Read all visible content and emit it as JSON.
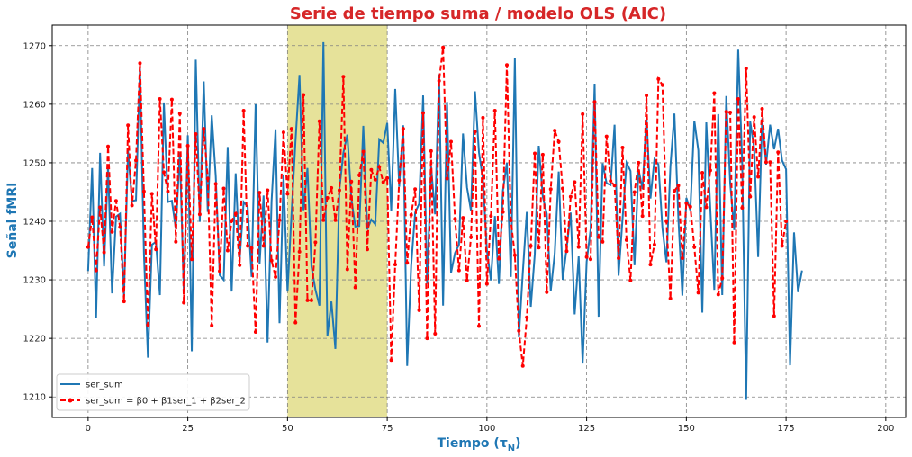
{
  "chart_data": {
    "type": "line",
    "title": "Serie de tiempo suma / modelo OLS (AIC)",
    "xlabel": "Tiempo (τ",
    "xlabel_sub": "N",
    "ylabel": "Señal fMRI",
    "xlim": [
      -9,
      205
    ],
    "ylim": [
      1206.5,
      1273.5
    ],
    "xticks": [
      0,
      25,
      50,
      75,
      100,
      125,
      150,
      175,
      200
    ],
    "yticks": [
      1210,
      1220,
      1230,
      1240,
      1250,
      1260,
      1270
    ],
    "grid": true,
    "highlight_region": {
      "x0": 50,
      "x1": 75,
      "color": "#e6e29a"
    },
    "legend_position": "lower-left",
    "series": [
      {
        "name": "ser_sum",
        "color": "#1f77b4",
        "style": "solid",
        "values": [
          1231.5,
          1249.1,
          1223.5,
          1251.7,
          1232.3,
          1249.4,
          1227.7,
          1240.8,
          1241.3,
          1227.2,
          1252.1,
          1243.5,
          1243.6,
          1266.3,
          1234.4,
          1216.7,
          1236.0,
          1236.5,
          1227.4,
          1260.3,
          1243.3,
          1243.5,
          1238.7,
          1251.8,
          1227.9,
          1254.7,
          1217.8,
          1267.6,
          1239.9,
          1263.9,
          1241.6,
          1258.1,
          1247.7,
          1230.8,
          1230.0,
          1252.7,
          1228.0,
          1248.2,
          1233.5,
          1243.3,
          1242.5,
          1230.5,
          1260.0,
          1232.7,
          1244.4,
          1219.3,
          1243.4,
          1255.7,
          1222.6,
          1248.0,
          1228.0,
          1241.2,
          1253.7,
          1265.0,
          1241.9,
          1249.1,
          1232.3,
          1228.3,
          1225.6,
          1270.6,
          1220.4,
          1226.3,
          1218.2,
          1245.4,
          1251.7,
          1254.8,
          1243.9,
          1239.1,
          1239.2,
          1256.3,
          1238.6,
          1240.3,
          1239.5,
          1254.0,
          1253.4,
          1256.8,
          1241.8,
          1262.6,
          1245.9,
          1256.4,
          1215.3,
          1232.4,
          1241.5,
          1243.0,
          1261.5,
          1229.3,
          1249.4,
          1241.2,
          1265.1,
          1225.6,
          1260.4,
          1231.2,
          1234.6,
          1236.0,
          1255.0,
          1245.8,
          1241.8,
          1262.2,
          1251.8,
          1247.1,
          1235.0,
          1229.9,
          1240.9,
          1229.3,
          1245.2,
          1250.0,
          1230.5,
          1267.9,
          1220.2,
          1231.3,
          1241.6,
          1225.4,
          1234.4,
          1252.9,
          1244.2,
          1241.3,
          1228.1,
          1234.5,
          1248.5,
          1230.0,
          1235.5,
          1241.5,
          1224.1,
          1234.0,
          1215.7,
          1233.1,
          1238.7,
          1263.5,
          1223.7,
          1249.9,
          1246.5,
          1246.2,
          1256.5,
          1230.7,
          1240.4,
          1250.0,
          1248.6,
          1232.5,
          1248.9,
          1245.5,
          1257.7,
          1243.9,
          1250.6,
          1249.7,
          1238.8,
          1233.0,
          1249.4,
          1258.4,
          1240.4,
          1227.3,
          1244.0,
          1241.9,
          1257.2,
          1252.1,
          1224.4,
          1256.9,
          1242.2,
          1228.3,
          1258.3,
          1227.4,
          1261.4,
          1246.4,
          1238.5,
          1269.3,
          1250.0,
          1209.5,
          1257.1,
          1252.5,
          1233.9,
          1257.6,
          1249.7,
          1256.5,
          1252.3,
          1255.8,
          1250.4,
          1248.9,
          1215.4,
          1238.1,
          1227.9,
          1231.6
        ]
      },
      {
        "name": "ser_sum = β0 + β1ser_1 + β2ser_2",
        "color": "#ff0000",
        "style": "dashed",
        "values": [
          1235.6,
          1240.7,
          1231.6,
          1242.4,
          1234.7,
          1252.8,
          1238.2,
          1243.5,
          1239.0,
          1226.3,
          1256.4,
          1242.7,
          1250.4,
          1267.0,
          1245.1,
          1222.3,
          1244.7,
          1235.2,
          1260.9,
          1248.4,
          1245.1,
          1260.8,
          1236.5,
          1258.4,
          1226.1,
          1252.9,
          1233.5,
          1254.9,
          1241.2,
          1255.8,
          1247.3,
          1222.2,
          1246.4,
          1231.5,
          1245.6,
          1235.0,
          1240.1,
          1241.3,
          1232.5,
          1258.9,
          1235.8,
          1235.4,
          1221.1,
          1244.9,
          1235.8,
          1245.3,
          1233.3,
          1230.5,
          1240.2,
          1255.2,
          1244.7,
          1255.8,
          1222.7,
          1234.8,
          1261.6,
          1226.5,
          1226.5,
          1236.4,
          1257.1,
          1240.2,
          1244.0,
          1245.7,
          1240.2,
          1245.3,
          1264.7,
          1231.8,
          1246.8,
          1228.7,
          1247.9,
          1251.9,
          1235.2,
          1248.8,
          1247.1,
          1249.3,
          1246.7,
          1247.4,
          1216.3,
          1232.6,
          1247.0,
          1255.8,
          1232.9,
          1241.1,
          1245.5,
          1224.8,
          1258.5,
          1220.0,
          1252.0,
          1220.8,
          1264.0,
          1269.7,
          1247.3,
          1253.6,
          1240.4,
          1231.6,
          1240.6,
          1229.9,
          1237.3,
          1255.3,
          1222.1,
          1257.7,
          1229.3,
          1240.9,
          1258.9,
          1233.6,
          1241.6,
          1266.7,
          1240.2,
          1234.2,
          1221.3,
          1215.3,
          1223.6,
          1235.8,
          1251.6,
          1235.5,
          1251.4,
          1227.9,
          1245.5,
          1255.5,
          1253.6,
          1245.6,
          1234.9,
          1244.2,
          1246.7,
          1235.6,
          1258.3,
          1233.9,
          1233.5,
          1260.4,
          1237.3,
          1236.5,
          1254.5,
          1246.9,
          1246.1,
          1233.7,
          1252.6,
          1236.8,
          1229.9,
          1245.0,
          1250.0,
          1240.9,
          1261.5,
          1232.6,
          1236.0,
          1264.3,
          1263.3,
          1240.0,
          1226.8,
          1245.2,
          1246.1,
          1233.7,
          1243.1,
          1242.5,
          1235.6,
          1227.8,
          1248.3,
          1242.4,
          1248.7,
          1261.9,
          1227.5,
          1230.3,
          1258.7,
          1258.6,
          1219.3,
          1260.9,
          1242.3,
          1266.1,
          1244.2,
          1257.8,
          1247.6,
          1259.2,
          1250.1,
          1250.1,
          1223.8,
          1251.8,
          1235.8,
          1240.0
        ]
      }
    ]
  }
}
